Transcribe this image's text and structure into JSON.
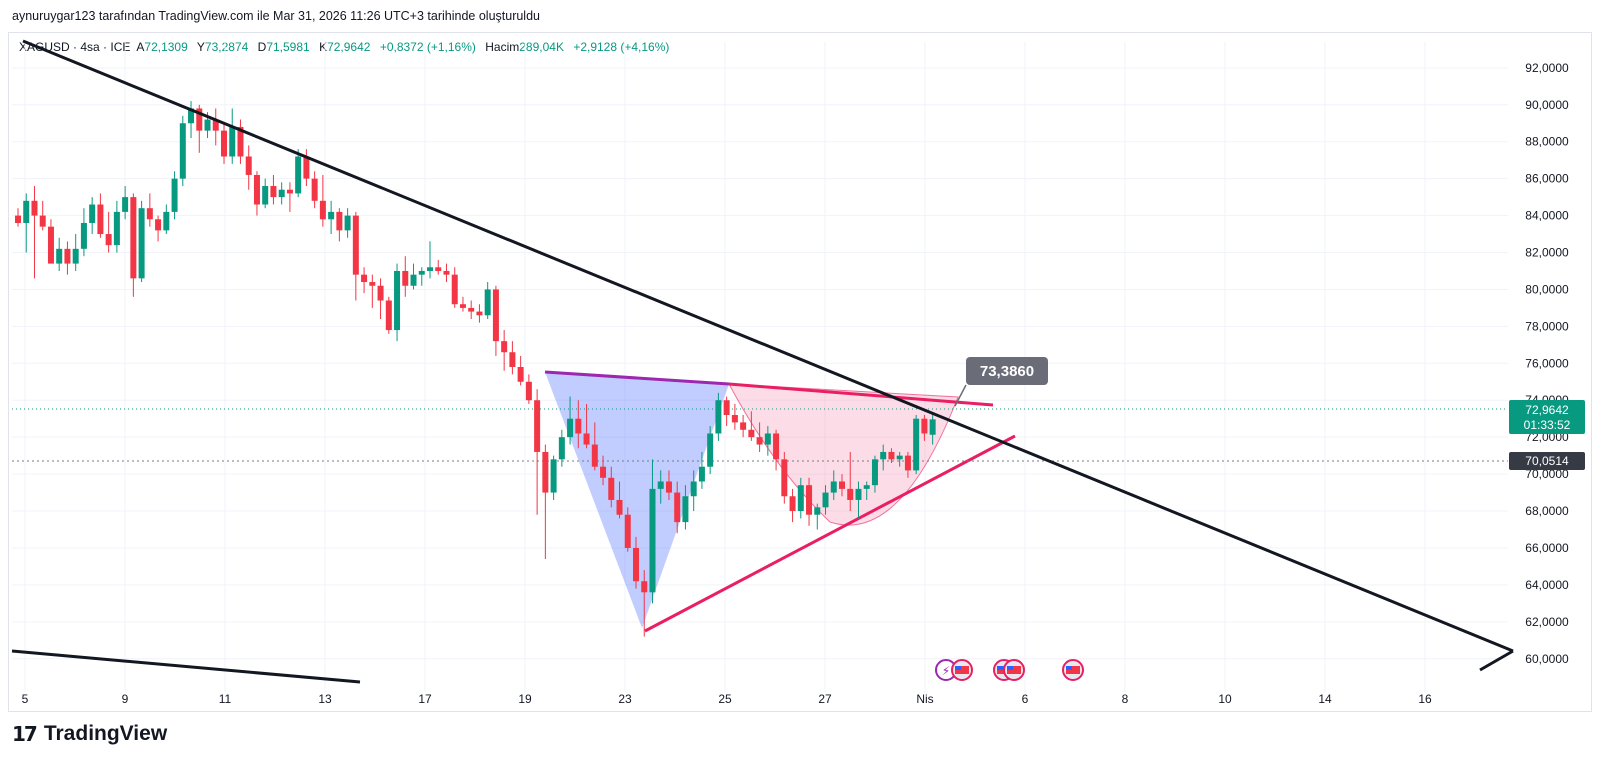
{
  "caption": "aynuruygar123 tarafından TradingView.com ile Mar 31, 2026 11:26 UTC+3 tarihinde oluşturuldu",
  "legend": {
    "symbol": "XAGUSD · 4sa · ICE",
    "open_label": "A",
    "open": "72,1309",
    "high_label": "Y",
    "high": "73,2874",
    "low_label": "D",
    "low": "71,5981",
    "close_label": "K",
    "close": "72,9642",
    "change": "+0,8372 (+1,16%)",
    "volume_label": "Hacim",
    "volume": "289,04K",
    "volume_change": "+2,9128 (+4,16%)"
  },
  "price_tag": {
    "price": "72,9642",
    "countdown": "01:33:52",
    "color": "#089981"
  },
  "level_tag": {
    "price": "70,0514",
    "color": "#363a45"
  },
  "callout": {
    "text": "73,3860",
    "color": "#6a6d78"
  },
  "logo_text": "TradingView",
  "colors": {
    "up": "#089981",
    "down": "#f23645",
    "trendline": "#131722",
    "pink": "#e91e63",
    "purple": "#9c27b0"
  },
  "chart_data": {
    "type": "candlestick",
    "symbol": "XAGUSD",
    "interval": "4sa",
    "ylim": [
      58.2,
      93.4
    ],
    "y_ticks": [
      "92,0000",
      "90,0000",
      "88,0000",
      "86,0000",
      "84,0000",
      "82,0000",
      "80,0000",
      "78,0000",
      "76,0000",
      "74,0000",
      "72,0000",
      "70,0000",
      "68,0000",
      "66,0000",
      "64,0000",
      "62,0000",
      "60,0000"
    ],
    "x_ticks": [
      "5",
      "9",
      "11",
      "13",
      "17",
      "19",
      "23",
      "25",
      "27",
      "Nis",
      "6",
      "8",
      "10",
      "14",
      "16"
    ],
    "current_price": 72.9642,
    "horizontal_level": 70.0514,
    "candles": [
      [
        84.0,
        84.4,
        83.4,
        83.6
      ],
      [
        83.6,
        85.2,
        82.0,
        84.8
      ],
      [
        84.8,
        85.6,
        80.6,
        84.0
      ],
      [
        84.0,
        84.8,
        83.2,
        83.4
      ],
      [
        83.4,
        83.8,
        81.4,
        81.4
      ],
      [
        81.4,
        82.8,
        81.0,
        82.2
      ],
      [
        82.2,
        82.6,
        80.8,
        81.4
      ],
      [
        81.4,
        83.0,
        81.0,
        82.2
      ],
      [
        82.2,
        84.4,
        81.8,
        83.6
      ],
      [
        83.6,
        85.0,
        83.0,
        84.6
      ],
      [
        84.6,
        85.2,
        82.8,
        83.0
      ],
      [
        83.0,
        84.2,
        82.0,
        82.4
      ],
      [
        82.4,
        84.8,
        82.0,
        84.2
      ],
      [
        84.2,
        85.6,
        83.8,
        85.0
      ],
      [
        85.0,
        85.2,
        79.6,
        80.6
      ],
      [
        80.6,
        84.8,
        80.4,
        84.4
      ],
      [
        84.4,
        85.2,
        83.4,
        83.8
      ],
      [
        83.8,
        84.0,
        82.6,
        83.2
      ],
      [
        83.2,
        84.6,
        83.0,
        84.2
      ],
      [
        84.2,
        86.4,
        83.8,
        86.0
      ],
      [
        86.0,
        89.4,
        85.6,
        89.0
      ],
      [
        89.0,
        90.2,
        88.2,
        89.8
      ],
      [
        89.8,
        90.0,
        87.4,
        88.6
      ],
      [
        88.6,
        89.6,
        88.2,
        89.2
      ],
      [
        89.2,
        89.8,
        87.8,
        88.6
      ],
      [
        88.6,
        89.0,
        86.8,
        87.2
      ],
      [
        87.2,
        89.8,
        86.8,
        88.8
      ],
      [
        88.8,
        89.2,
        86.8,
        87.2
      ],
      [
        87.2,
        87.8,
        85.4,
        86.2
      ],
      [
        86.2,
        86.4,
        84.0,
        84.6
      ],
      [
        84.6,
        86.0,
        84.4,
        85.6
      ],
      [
        85.6,
        86.2,
        84.6,
        85.0
      ],
      [
        85.0,
        85.8,
        84.6,
        85.4
      ],
      [
        85.4,
        85.8,
        84.2,
        85.2
      ],
      [
        85.2,
        87.6,
        85.0,
        87.2
      ],
      [
        87.2,
        87.6,
        85.6,
        86.0
      ],
      [
        86.0,
        86.4,
        84.4,
        84.8
      ],
      [
        84.8,
        86.2,
        83.4,
        83.8
      ],
      [
        83.8,
        84.8,
        83.0,
        84.2
      ],
      [
        84.2,
        84.4,
        82.6,
        83.2
      ],
      [
        83.2,
        84.4,
        82.8,
        84.0
      ],
      [
        84.0,
        84.2,
        79.4,
        80.8
      ],
      [
        80.8,
        81.2,
        79.8,
        80.4
      ],
      [
        80.4,
        80.8,
        79.0,
        80.2
      ],
      [
        80.2,
        80.6,
        78.4,
        79.4
      ],
      [
        79.4,
        79.6,
        77.6,
        77.8
      ],
      [
        77.8,
        81.4,
        77.2,
        81.0
      ],
      [
        81.0,
        81.8,
        79.6,
        80.2
      ],
      [
        80.2,
        81.4,
        80.0,
        80.8
      ],
      [
        80.8,
        81.2,
        80.2,
        81.0
      ],
      [
        81.0,
        82.6,
        80.6,
        81.2
      ],
      [
        81.2,
        81.6,
        80.8,
        81.0
      ],
      [
        81.0,
        81.4,
        80.4,
        80.8
      ],
      [
        80.8,
        81.2,
        79.0,
        79.2
      ],
      [
        79.2,
        79.6,
        78.8,
        79.0
      ],
      [
        79.0,
        79.4,
        78.4,
        78.8
      ],
      [
        78.8,
        79.2,
        78.2,
        78.6
      ],
      [
        78.6,
        80.4,
        78.4,
        80.0
      ],
      [
        80.0,
        80.2,
        76.4,
        77.2
      ],
      [
        77.2,
        77.8,
        75.6,
        76.6
      ],
      [
        76.6,
        77.2,
        75.4,
        75.8
      ],
      [
        75.8,
        76.4,
        74.8,
        75.0
      ],
      [
        75.0,
        75.4,
        73.8,
        74.0
      ],
      [
        74.0,
        74.6,
        67.8,
        71.2
      ],
      [
        71.2,
        71.6,
        65.4,
        69.0
      ],
      [
        69.0,
        71.0,
        68.6,
        70.8
      ],
      [
        70.8,
        72.4,
        70.4,
        72.0
      ],
      [
        72.0,
        74.2,
        71.6,
        73.0
      ],
      [
        73.0,
        74.0,
        71.4,
        72.2
      ],
      [
        72.2,
        73.8,
        71.4,
        71.6
      ],
      [
        71.6,
        72.8,
        70.2,
        70.4
      ],
      [
        70.4,
        71.0,
        69.4,
        69.8
      ],
      [
        69.8,
        70.4,
        68.2,
        68.6
      ],
      [
        68.6,
        69.6,
        67.6,
        67.8
      ],
      [
        67.8,
        68.2,
        65.8,
        66.0
      ],
      [
        66.0,
        66.6,
        63.8,
        64.2
      ],
      [
        64.2,
        64.8,
        61.2,
        63.6
      ],
      [
        63.6,
        70.8,
        63.0,
        69.2
      ],
      [
        69.2,
        70.2,
        68.4,
        69.6
      ],
      [
        69.6,
        70.2,
        68.6,
        69.0
      ],
      [
        69.0,
        69.6,
        66.8,
        67.4
      ],
      [
        67.4,
        69.4,
        67.0,
        68.8
      ],
      [
        68.8,
        70.2,
        68.0,
        69.6
      ],
      [
        69.6,
        71.2,
        69.2,
        70.4
      ],
      [
        70.4,
        72.6,
        70.0,
        72.2
      ],
      [
        72.2,
        74.4,
        71.8,
        74.0
      ],
      [
        74.0,
        74.2,
        72.6,
        73.2
      ],
      [
        73.2,
        73.8,
        72.4,
        72.8
      ],
      [
        72.8,
        73.2,
        72.0,
        72.4
      ],
      [
        72.4,
        73.4,
        71.8,
        72.0
      ],
      [
        72.0,
        72.8,
        71.2,
        71.6
      ],
      [
        71.6,
        72.6,
        71.0,
        72.2
      ],
      [
        72.2,
        72.4,
        70.2,
        70.8
      ],
      [
        70.8,
        71.2,
        68.4,
        68.8
      ],
      [
        68.8,
        69.2,
        67.4,
        68.0
      ],
      [
        68.0,
        69.8,
        67.6,
        69.4
      ],
      [
        69.4,
        69.8,
        67.2,
        67.8
      ],
      [
        67.8,
        68.4,
        67.0,
        68.2
      ],
      [
        68.2,
        69.4,
        67.8,
        69.0
      ],
      [
        69.0,
        70.2,
        68.6,
        69.6
      ],
      [
        69.6,
        70.0,
        68.8,
        69.2
      ],
      [
        69.2,
        71.2,
        68.0,
        68.6
      ],
      [
        68.6,
        69.6,
        67.6,
        69.2
      ],
      [
        69.2,
        69.6,
        68.6,
        69.4
      ],
      [
        69.4,
        71.0,
        69.0,
        70.8
      ],
      [
        70.8,
        71.6,
        70.2,
        71.2
      ],
      [
        71.2,
        71.4,
        70.6,
        70.8
      ],
      [
        70.8,
        71.2,
        70.4,
        71.0
      ],
      [
        71.0,
        71.2,
        69.8,
        70.2
      ],
      [
        70.2,
        73.2,
        70.0,
        73.0
      ],
      [
        73.0,
        73.2,
        71.8,
        72.2
      ],
      [
        72.1309,
        73.2874,
        71.5981,
        72.9642
      ]
    ]
  }
}
